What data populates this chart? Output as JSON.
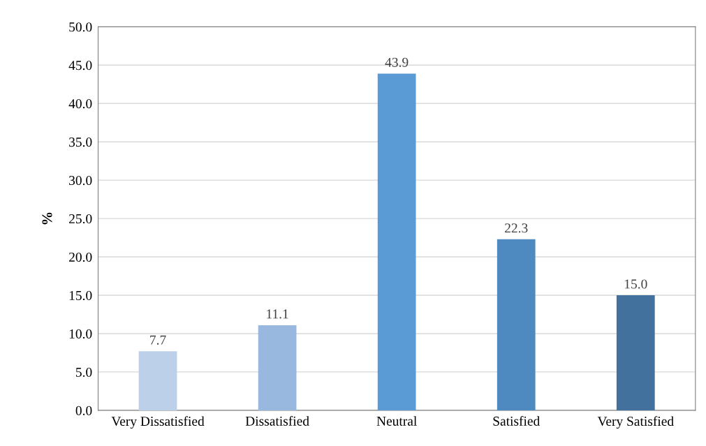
{
  "chart_data": {
    "type": "bar",
    "ylabel": "%",
    "categories": [
      "Very Dissatisfied",
      "Dissatisfied",
      "Neutral",
      "Satisfied",
      "Very Satisfied"
    ],
    "values": [
      7.7,
      11.1,
      43.9,
      22.3,
      15.0
    ],
    "colors": [
      "#bdd0ea",
      "#98b8e0",
      "#5b9bd5",
      "#4e8abf",
      "#41719c"
    ],
    "value_labels": [
      "7.7",
      "11.1",
      "43.9",
      "22.3",
      "15.0"
    ],
    "ylim": [
      0,
      50
    ],
    "yticks": [
      {
        "value": 0,
        "label": "0.0"
      },
      {
        "value": 5,
        "label": "5.0"
      },
      {
        "value": 10,
        "label": "10.0"
      },
      {
        "value": 15,
        "label": "15.0"
      },
      {
        "value": 20,
        "label": "20.0"
      },
      {
        "value": 25,
        "label": "25.0"
      },
      {
        "value": 30,
        "label": "30.0"
      },
      {
        "value": 35,
        "label": "35.0"
      },
      {
        "value": 40,
        "label": "40.0"
      },
      {
        "value": 45,
        "label": "45.0"
      },
      {
        "value": 50,
        "label": "50.0"
      }
    ],
    "grid": "y",
    "legend": false
  }
}
